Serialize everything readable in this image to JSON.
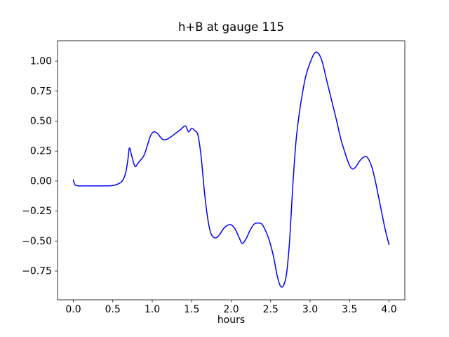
{
  "figure": {
    "title": "h+B at gauge 115",
    "xlabel": "hours",
    "background": "#ffffff",
    "axis_color": "#000000",
    "line_color": "#0000ff",
    "xtick_labels": [
      "0.0",
      "0.5",
      "1.0",
      "1.5",
      "2.0",
      "2.5",
      "3.0",
      "3.5",
      "4.0"
    ],
    "ytick_labels": [
      "1.00",
      "0.75",
      "0.50",
      "0.25",
      "0.00",
      "−0.25",
      "−0.50",
      "−0.75"
    ]
  },
  "chart_data": {
    "type": "line",
    "title": "h+B at gauge 115",
    "xlabel": "hours",
    "ylabel": "",
    "xlim": [
      -0.2,
      4.2
    ],
    "ylim": [
      -0.99,
      1.17
    ],
    "xticks": [
      0.0,
      0.5,
      1.0,
      1.5,
      2.0,
      2.5,
      3.0,
      3.5,
      4.0
    ],
    "yticks": [
      1.0,
      0.75,
      0.5,
      0.25,
      0.0,
      -0.25,
      -0.5,
      -0.75
    ],
    "grid": false,
    "series": [
      {
        "name": "h+B",
        "color": "#0000ff",
        "x": [
          0.0,
          0.02,
          0.06,
          0.15,
          0.25,
          0.35,
          0.45,
          0.52,
          0.58,
          0.62,
          0.66,
          0.69,
          0.71,
          0.74,
          0.77,
          0.79,
          0.82,
          0.86,
          0.9,
          0.94,
          0.98,
          1.02,
          1.06,
          1.1,
          1.14,
          1.19,
          1.24,
          1.3,
          1.36,
          1.42,
          1.46,
          1.5,
          1.54,
          1.58,
          1.62,
          1.66,
          1.7,
          1.74,
          1.78,
          1.82,
          1.86,
          1.9,
          1.95,
          2.0,
          2.05,
          2.1,
          2.14,
          2.19,
          2.24,
          2.29,
          2.34,
          2.39,
          2.44,
          2.49,
          2.54,
          2.58,
          2.62,
          2.66,
          2.7,
          2.74,
          2.78,
          2.82,
          2.86,
          2.9,
          2.94,
          2.98,
          3.02,
          3.05,
          3.08,
          3.12,
          3.16,
          3.21,
          3.27,
          3.33,
          3.39,
          3.45,
          3.5,
          3.54,
          3.58,
          3.62,
          3.66,
          3.71,
          3.75,
          3.79,
          3.83,
          3.87,
          3.91,
          3.95,
          4.0
        ],
        "y": [
          0.01,
          -0.03,
          -0.04,
          -0.04,
          -0.04,
          -0.04,
          -0.04,
          -0.035,
          -0.02,
          0.0,
          0.06,
          0.17,
          0.275,
          0.21,
          0.14,
          0.12,
          0.15,
          0.18,
          0.22,
          0.3,
          0.38,
          0.41,
          0.4,
          0.37,
          0.345,
          0.35,
          0.37,
          0.4,
          0.43,
          0.46,
          0.41,
          0.44,
          0.42,
          0.38,
          0.2,
          -0.08,
          -0.3,
          -0.43,
          -0.47,
          -0.47,
          -0.44,
          -0.4,
          -0.37,
          -0.365,
          -0.4,
          -0.47,
          -0.52,
          -0.48,
          -0.41,
          -0.36,
          -0.35,
          -0.36,
          -0.42,
          -0.51,
          -0.64,
          -0.78,
          -0.87,
          -0.875,
          -0.78,
          -0.5,
          -0.05,
          0.32,
          0.55,
          0.72,
          0.86,
          0.95,
          1.02,
          1.06,
          1.075,
          1.05,
          0.98,
          0.84,
          0.68,
          0.52,
          0.35,
          0.22,
          0.13,
          0.1,
          0.12,
          0.16,
          0.19,
          0.205,
          0.17,
          0.1,
          -0.01,
          -0.14,
          -0.27,
          -0.4,
          -0.53
        ]
      }
    ]
  }
}
